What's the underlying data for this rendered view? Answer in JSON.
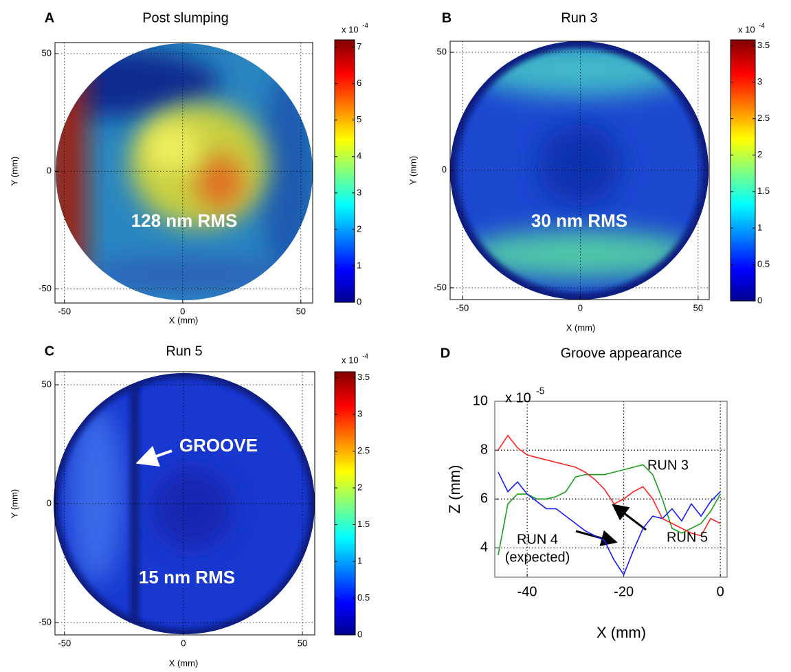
{
  "chart_data": [
    {
      "type": "heatmap",
      "panel_label": "A",
      "title": "Post slumping",
      "xlabel": "X (mm)",
      "ylabel": "Y (mm)",
      "xlim": [
        -54,
        55
      ],
      "ylim": [
        -56,
        54.7
      ],
      "xticks": [
        -50,
        0,
        50
      ],
      "yticks": [
        -50,
        0,
        50
      ],
      "grid": true,
      "colorbar_lim": [
        0,
        7.2
      ],
      "colorbar_ticks": [
        0,
        1,
        2,
        3,
        4,
        5,
        6,
        7
      ],
      "colorbar_scale": "x 10",
      "colorbar_exponent": "-4",
      "annotations": [
        "128 nm RMS"
      ]
    },
    {
      "type": "heatmap",
      "panel_label": "B",
      "title": "Run 3",
      "xlabel": "X (mm)",
      "ylabel": "Y (mm)",
      "xlim": [
        -55.2,
        54.7
      ],
      "ylim": [
        -55,
        54.7
      ],
      "xticks": [
        -50,
        0,
        50
      ],
      "yticks": [
        -50,
        0,
        50
      ],
      "grid": true,
      "colorbar_lim": [
        0,
        3.58
      ],
      "colorbar_ticks": [
        0,
        0.5,
        1,
        1.5,
        2,
        2.5,
        3,
        3.5
      ],
      "colorbar_scale": "x 10",
      "colorbar_exponent": "-4",
      "annotations": [
        "30 nm RMS"
      ]
    },
    {
      "type": "heatmap",
      "panel_label": "C",
      "title": "Run 5",
      "xlabel": "X (mm)",
      "ylabel": "Y (mm)",
      "xlim": [
        -54,
        55.2
      ],
      "ylim": [
        -55.2,
        55.5
      ],
      "xticks": [
        -50,
        0,
        50
      ],
      "yticks": [
        -50,
        0,
        50
      ],
      "grid": true,
      "colorbar_lim": [
        0,
        3.58
      ],
      "colorbar_ticks": [
        0,
        0.5,
        1,
        1.5,
        2,
        2.5,
        3,
        3.5
      ],
      "colorbar_scale": "x 10",
      "colorbar_exponent": "-4",
      "annotations": [
        "GROOVE",
        "15 nm RMS"
      ]
    },
    {
      "type": "line",
      "panel_label": "D",
      "title": "Groove appearance",
      "xlabel": "X (mm)",
      "ylabel": "Z (mm)",
      "y_scale": "x 10",
      "y_exponent": "-5",
      "xlim": [
        -46.7,
        1.4
      ],
      "ylim": [
        2.8,
        10
      ],
      "xticks": [
        -40,
        -20,
        0
      ],
      "yticks": [
        4,
        6,
        8,
        10
      ],
      "grid": true,
      "x": [
        -46,
        -44,
        -42,
        -40,
        -38,
        -36,
        -34,
        -32,
        -30,
        -28,
        -26,
        -24,
        -22,
        -20,
        -18,
        -16,
        -14,
        -12,
        -10,
        -8,
        -6,
        -4,
        -2,
        0
      ],
      "series": [
        {
          "name": "RUN 3",
          "color": "#1e9e1e",
          "values": [
            3.7,
            5.8,
            6.2,
            6.2,
            6.0,
            6.0,
            6.1,
            6.3,
            6.9,
            7.0,
            7.0,
            7.0,
            7.1,
            7.2,
            7.3,
            7.4,
            7.0,
            6.0,
            4.8,
            4.6,
            4.8,
            5.0,
            5.5,
            6.2
          ]
        },
        {
          "name": "RUN 4",
          "color": "#1a1aff",
          "values": [
            7.1,
            6.3,
            6.7,
            6.2,
            5.9,
            5.6,
            5.6,
            5.3,
            5.0,
            4.7,
            4.5,
            4.3,
            3.5,
            2.9,
            3.9,
            4.8,
            5.3,
            5.2,
            5.6,
            5.1,
            5.8,
            5.3,
            5.9,
            6.3
          ]
        },
        {
          "name": "RUN 5",
          "color": "#ff2020",
          "values": [
            8.0,
            8.6,
            8.1,
            7.8,
            7.7,
            7.6,
            7.5,
            7.4,
            7.3,
            7.1,
            6.8,
            6.4,
            5.8,
            6.0,
            6.3,
            6.5,
            6.0,
            5.2,
            5.0,
            4.8,
            4.6,
            4.5,
            5.2,
            5.0
          ]
        }
      ],
      "annotations": [
        "(expected)"
      ]
    }
  ]
}
